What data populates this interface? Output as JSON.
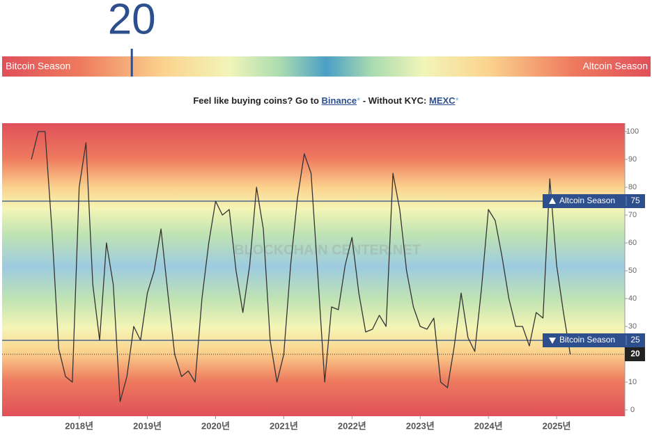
{
  "gauge": {
    "value": 20,
    "left_label": "Bitcoin Season",
    "right_label": "Altcoin Season"
  },
  "promo": {
    "lead": "Feel like buying coins? Go to",
    "link1": "Binance",
    "star1": "*",
    "middle": "- Without KYC:",
    "link2": "MEXC",
    "star2": "*"
  },
  "chart_data": {
    "type": "line",
    "color": "#333333",
    "watermark": "BLOCKCHAIN CENTER.NET",
    "x": [
      2017.3,
      2017.4,
      2017.5,
      2017.6,
      2017.7,
      2017.8,
      2017.9,
      2018.0,
      2018.1,
      2018.2,
      2018.3,
      2018.4,
      2018.5,
      2018.6,
      2018.7,
      2018.8,
      2018.9,
      2019.0,
      2019.1,
      2019.2,
      2019.3,
      2019.4,
      2019.5,
      2019.6,
      2019.7,
      2019.8,
      2019.9,
      2020.0,
      2020.1,
      2020.2,
      2020.3,
      2020.4,
      2020.5,
      2020.6,
      2020.7,
      2020.8,
      2020.9,
      2021.0,
      2021.1,
      2021.2,
      2021.3,
      2021.4,
      2021.5,
      2021.6,
      2021.7,
      2021.8,
      2021.9,
      2022.0,
      2022.1,
      2022.2,
      2022.3,
      2022.4,
      2022.5,
      2022.6,
      2022.7,
      2022.8,
      2022.9,
      2023.0,
      2023.1,
      2023.2,
      2023.3,
      2023.4,
      2023.5,
      2023.6,
      2023.7,
      2023.8,
      2023.9,
      2024.0,
      2024.1,
      2024.2,
      2024.3,
      2024.4,
      2024.5,
      2024.6,
      2024.7,
      2024.8,
      2024.9,
      2025.0,
      2025.1,
      2025.2
    ],
    "values": [
      90,
      100,
      100,
      65,
      22,
      12,
      10,
      80,
      96,
      45,
      25,
      60,
      45,
      3,
      12,
      30,
      25,
      42,
      50,
      65,
      42,
      20,
      12,
      14,
      10,
      40,
      60,
      75,
      70,
      72,
      50,
      35,
      52,
      80,
      65,
      25,
      10,
      20,
      52,
      76,
      92,
      85,
      48,
      10,
      37,
      36,
      52,
      62,
      42,
      28,
      29,
      34,
      30,
      85,
      72,
      50,
      37,
      30,
      29,
      33,
      10,
      8,
      23,
      42,
      26,
      21,
      44,
      72,
      68,
      55,
      40,
      30,
      30,
      23,
      35,
      33,
      83,
      52,
      35,
      20
    ],
    "xlim": [
      2016.87,
      2026.0
    ],
    "xticks": [
      {
        "value": 2018,
        "label": "2018년"
      },
      {
        "value": 2019,
        "label": "2019년"
      },
      {
        "value": 2020,
        "label": "2020년"
      },
      {
        "value": 2021,
        "label": "2021년"
      },
      {
        "value": 2022,
        "label": "2022년"
      },
      {
        "value": 2023,
        "label": "2023년"
      },
      {
        "value": 2024,
        "label": "2024년"
      },
      {
        "value": 2025,
        "label": "2025년"
      }
    ],
    "ylim": [
      -2.25,
      103
    ],
    "yticks": [
      0,
      10,
      20,
      30,
      40,
      50,
      60,
      70,
      80,
      90,
      100
    ],
    "reference_lines": [
      {
        "label": "Altcoin Season",
        "value": 75,
        "direction": "up"
      },
      {
        "label": "Bitcoin Season",
        "value": 25,
        "direction": "down"
      }
    ],
    "current": {
      "value": 20
    }
  }
}
